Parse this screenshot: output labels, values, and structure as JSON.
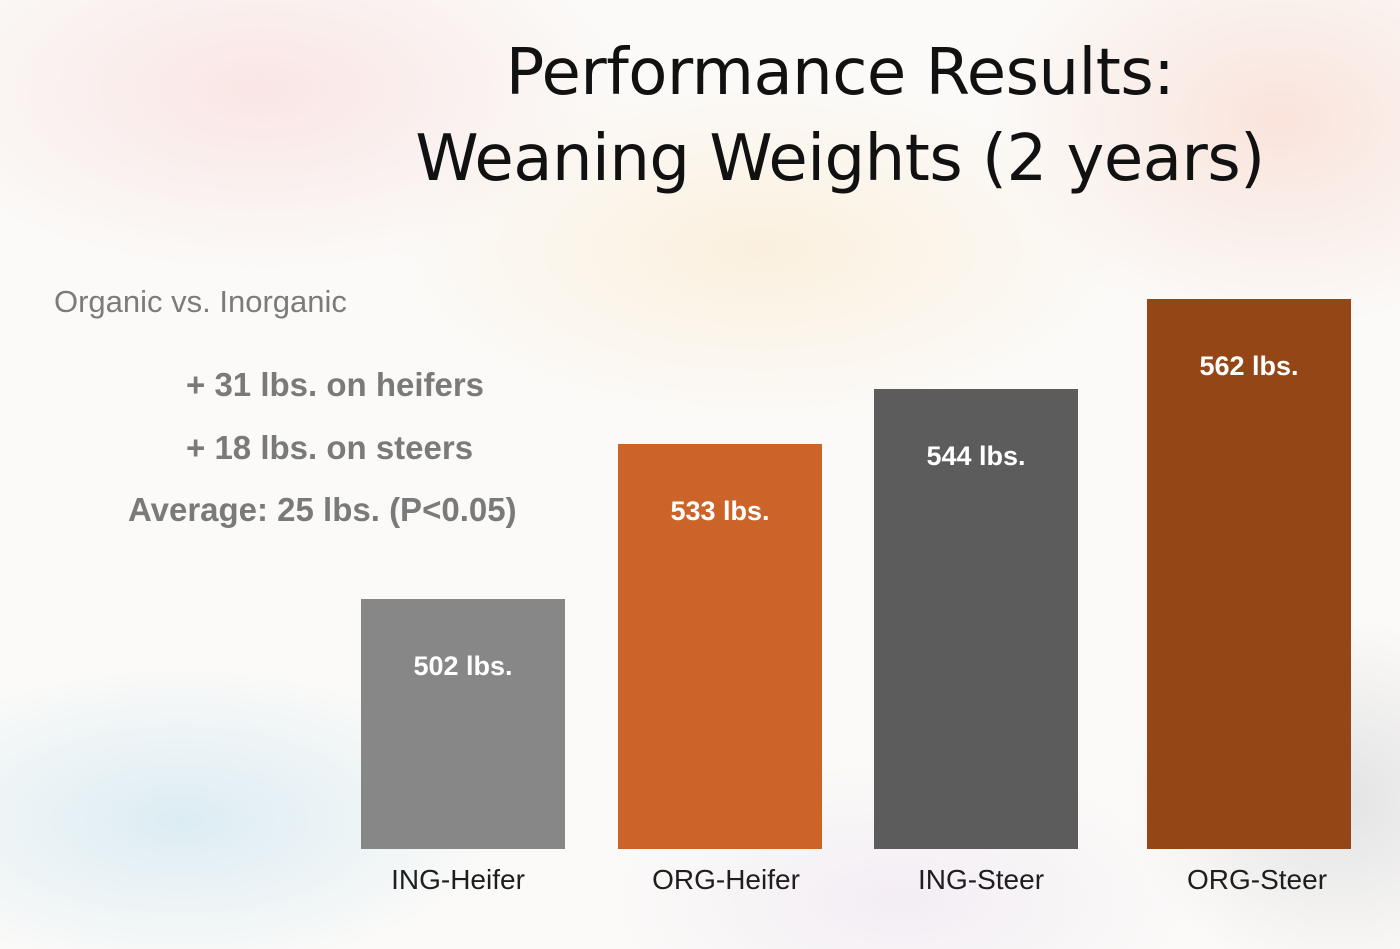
{
  "slide": {
    "title_line1": "Performance Results:",
    "title_line2": "Weaning Weights (2 years)",
    "subtitle": "Organic vs. Inorganic",
    "stats": [
      "+ 31 lbs. on heifers",
      "+ 18 lbs. on steers",
      "Average: 25 lbs. (P<0.05)"
    ]
  },
  "chart_data": {
    "type": "bar",
    "categories": [
      "ING-Heifer",
      "ORG-Heifer",
      "ING-Steer",
      "ORG-Steer"
    ],
    "values": [
      502,
      533,
      544,
      562
    ],
    "data_labels": [
      "502 lbs.",
      "533 lbs.",
      "544 lbs.",
      "562 lbs."
    ],
    "colors": [
      "#878787",
      "#cc6429",
      "#5c5c5c",
      "#944616"
    ],
    "ylim": [
      452,
      562
    ],
    "title": "",
    "xlabel": "",
    "ylabel": "",
    "grid": false,
    "legend": "none"
  }
}
